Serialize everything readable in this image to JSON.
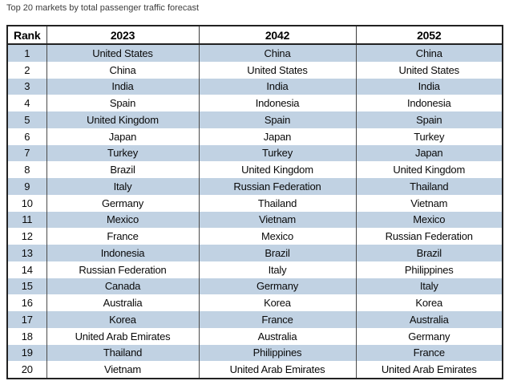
{
  "title": "Top 20 markets by total passenger traffic forecast",
  "chart_data": {
    "type": "table",
    "title": "Top 20 markets by total passenger traffic forecast",
    "columns": [
      "Rank",
      "2023",
      "2042",
      "2052"
    ],
    "rows": [
      [
        "1",
        "United States",
        "China",
        "China"
      ],
      [
        "2",
        "China",
        "United States",
        "United States"
      ],
      [
        "3",
        "India",
        "India",
        "India"
      ],
      [
        "4",
        "Spain",
        "Indonesia",
        "Indonesia"
      ],
      [
        "5",
        "United Kingdom",
        "Spain",
        "Spain"
      ],
      [
        "6",
        "Japan",
        "Japan",
        "Turkey"
      ],
      [
        "7",
        "Turkey",
        "Turkey",
        "Japan"
      ],
      [
        "8",
        "Brazil",
        "United Kingdom",
        "United Kingdom"
      ],
      [
        "9",
        "Italy",
        "Russian Federation",
        "Thailand"
      ],
      [
        "10",
        "Germany",
        "Thailand",
        "Vietnam"
      ],
      [
        "11",
        "Mexico",
        "Vietnam",
        "Mexico"
      ],
      [
        "12",
        "France",
        "Mexico",
        "Russian Federation"
      ],
      [
        "13",
        "Indonesia",
        "Brazil",
        "Brazil"
      ],
      [
        "14",
        "Russian Federation",
        "Italy",
        "Philippines"
      ],
      [
        "15",
        "Canada",
        "Germany",
        "Italy"
      ],
      [
        "16",
        "Australia",
        "Korea",
        "Korea"
      ],
      [
        "17",
        "Korea",
        "France",
        "Australia"
      ],
      [
        "18",
        "United Arab Emirates",
        "Australia",
        "Germany"
      ],
      [
        "19",
        "Thailand",
        "Philippines",
        "France"
      ],
      [
        "20",
        "Vietnam",
        "United Arab Emirates",
        "United Arab Emirates"
      ]
    ],
    "layout": {
      "zebra": "odd-rows-shaded",
      "legend": "none",
      "grid": "vertical-only"
    }
  },
  "colors": {
    "row_alt": "#c1d2e3",
    "border_outer": "#222222",
    "border_inner": "#4a4a4a",
    "title_text": "#3d3d3d",
    "cell_text": "#0a0a0a"
  }
}
